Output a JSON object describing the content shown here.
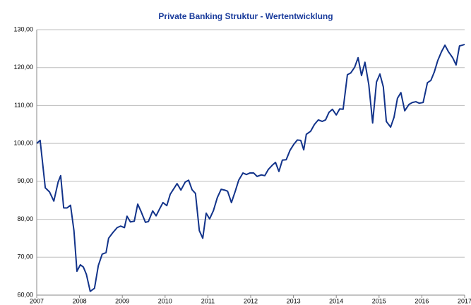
{
  "chart_data": {
    "type": "line",
    "title": "Private Banking Struktur - Wertentwicklung",
    "x": [
      2007.0,
      2007.08,
      2007.2,
      2007.3,
      2007.4,
      2007.5,
      2007.56,
      2007.63,
      2007.71,
      2007.79,
      2007.87,
      2007.94,
      2008.02,
      2008.09,
      2008.16,
      2008.25,
      2008.35,
      2008.44,
      2008.53,
      2008.62,
      2008.68,
      2008.78,
      2008.88,
      2008.96,
      2009.05,
      2009.11,
      2009.19,
      2009.28,
      2009.36,
      2009.44,
      2009.54,
      2009.61,
      2009.71,
      2009.79,
      2009.87,
      2009.95,
      2010.04,
      2010.12,
      2010.2,
      2010.28,
      2010.37,
      2010.47,
      2010.55,
      2010.63,
      2010.71,
      2010.8,
      2010.88,
      2010.96,
      2011.04,
      2011.13,
      2011.22,
      2011.31,
      2011.39,
      2011.46,
      2011.55,
      2011.64,
      2011.72,
      2011.82,
      2011.9,
      2011.98,
      2012.07,
      2012.15,
      2012.25,
      2012.33,
      2012.41,
      2012.5,
      2012.58,
      2012.66,
      2012.74,
      2012.83,
      2012.92,
      2013.01,
      2013.09,
      2013.17,
      2013.24,
      2013.3,
      2013.4,
      2013.49,
      2013.58,
      2013.67,
      2013.75,
      2013.83,
      2013.91,
      2014.0,
      2014.08,
      2014.16,
      2014.26,
      2014.34,
      2014.43,
      2014.51,
      2014.59,
      2014.67,
      2014.76,
      2014.85,
      2014.94,
      2015.02,
      2015.1,
      2015.17,
      2015.27,
      2015.35,
      2015.43,
      2015.51,
      2015.6,
      2015.7,
      2015.78,
      2015.86,
      2015.94,
      2016.03,
      2016.13,
      2016.21,
      2016.29,
      2016.37,
      2016.46,
      2016.54,
      2016.62,
      2016.72,
      2016.8,
      2016.88,
      2016.94,
      2017.0
    ],
    "series": [
      {
        "name": "Private Banking Struktur",
        "color": "#12338a",
        "values": [
          100,
          100.8,
          88.3,
          87.2,
          84.8,
          89.8,
          91.5,
          83,
          83,
          83.7,
          77,
          66.3,
          68,
          67.4,
          65.5,
          61,
          61.8,
          67.8,
          70.8,
          71.2,
          75,
          76.5,
          77.8,
          78.2,
          77.8,
          80.8,
          79.3,
          79.5,
          84,
          82,
          79.2,
          79.4,
          82.2,
          80.9,
          82.7,
          84.4,
          83.6,
          86.6,
          88,
          89.4,
          87.7,
          89.8,
          90.3,
          87.8,
          86.8,
          77,
          75,
          81.6,
          80.1,
          82.3,
          85.7,
          87.9,
          87.7,
          87.4,
          84.4,
          87.4,
          90.3,
          92.2,
          91.8,
          92.2,
          92.2,
          91.3,
          91.7,
          91.5,
          93.1,
          94.2,
          95,
          92.6,
          95.6,
          95.7,
          98.2,
          99.8,
          100.9,
          100.8,
          98.3,
          102.4,
          103.2,
          105,
          106.2,
          105.8,
          106.2,
          108.2,
          109,
          107.5,
          109.1,
          109,
          118.1,
          118.6,
          120.1,
          122.6,
          117.9,
          121.4,
          115.5,
          105.4,
          116.2,
          118.3,
          114.9,
          105.8,
          104.3,
          106.9,
          111.9,
          113.4,
          108.6,
          110.3,
          110.8,
          111,
          110.6,
          110.8,
          116,
          116.6,
          118.8,
          121.8,
          124.2,
          125.9,
          124.2,
          122.6,
          120.7,
          125.7,
          125.9,
          126.1
        ]
      }
    ],
    "xlim": [
      2007,
      2017
    ],
    "xticks": [
      2007,
      2008,
      2009,
      2010,
      2011,
      2012,
      2013,
      2014,
      2015,
      2016,
      2017
    ],
    "ylim": [
      60,
      130
    ],
    "yticks": [
      {
        "value": 60,
        "label": "60,00"
      },
      {
        "value": 70,
        "label": "70,00"
      },
      {
        "value": 80,
        "label": "80,00"
      },
      {
        "value": 90,
        "label": "90,00"
      },
      {
        "value": 100,
        "label": "100,00"
      },
      {
        "value": 110,
        "label": "110,00"
      },
      {
        "value": 120,
        "label": "120,00"
      },
      {
        "value": 130,
        "label": "130,00"
      }
    ],
    "grid": true
  }
}
